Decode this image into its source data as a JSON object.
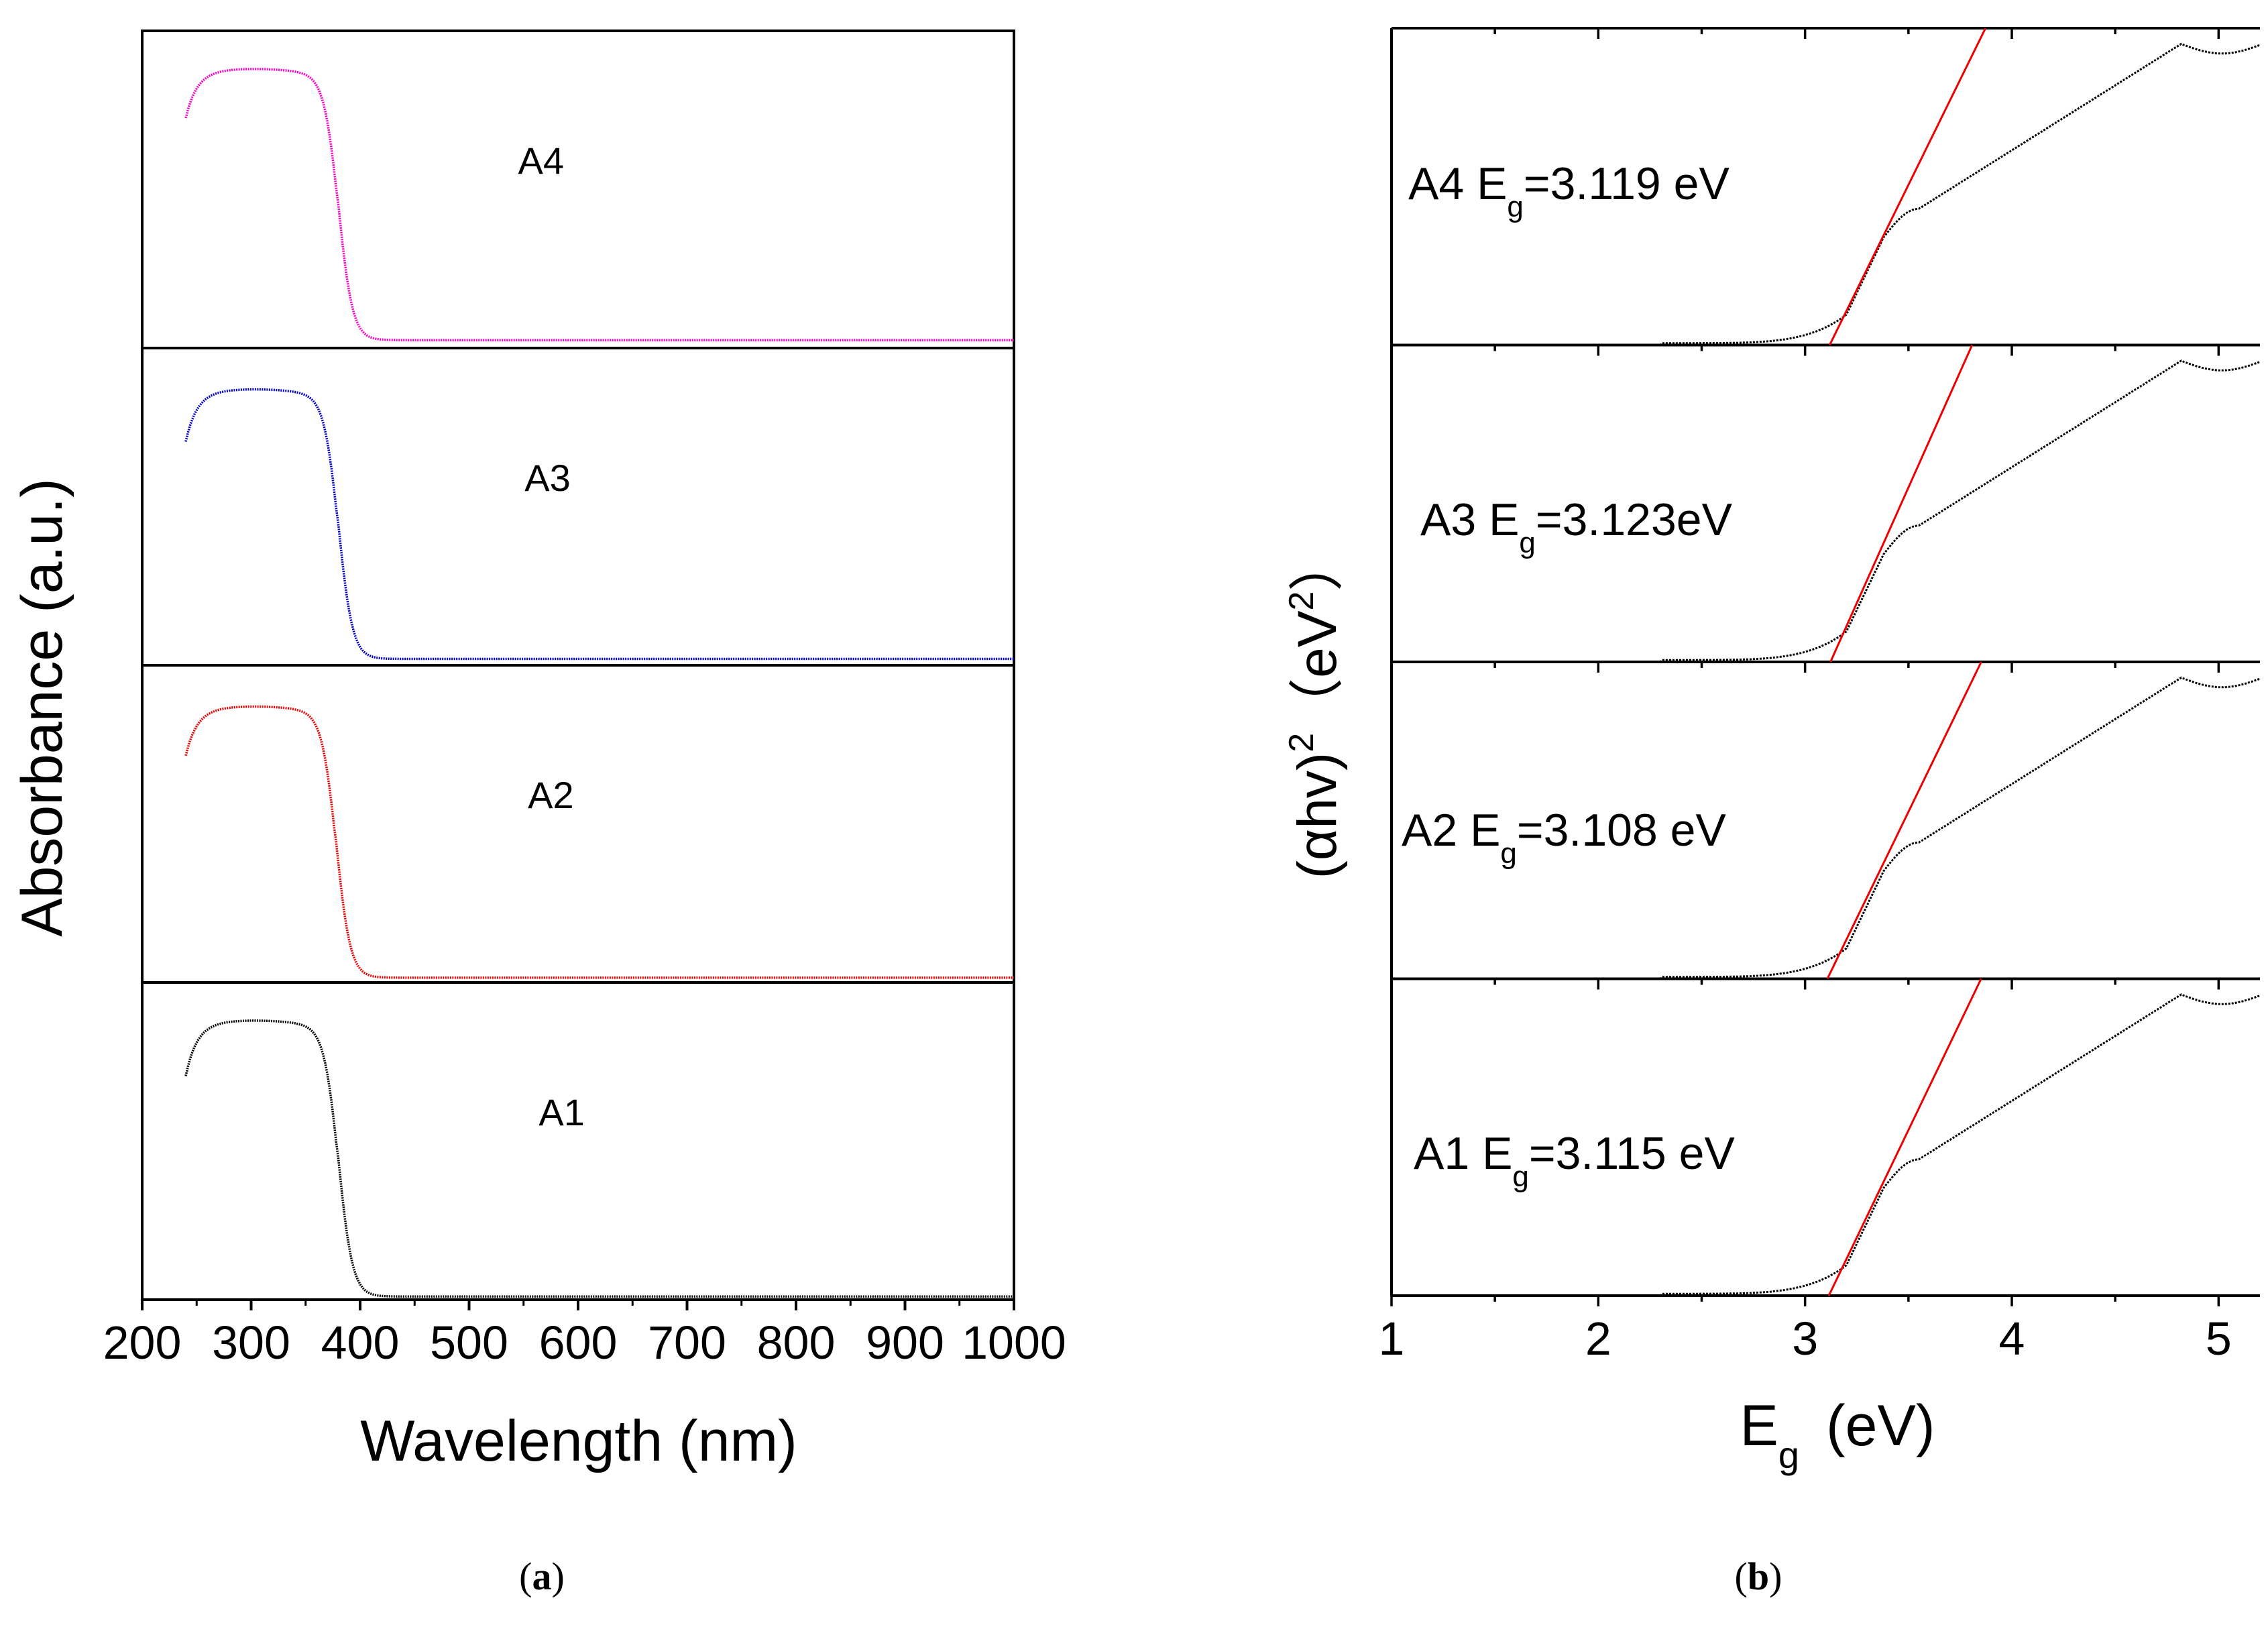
{
  "chart_data": [
    {
      "type": "line",
      "panel": "a",
      "caption_letter": "a",
      "xlabel": "Wavelength (nm)",
      "ylabel": "Absorbance (a.u.)",
      "xlim": [
        200,
        1000
      ],
      "ylim": [
        0,
        1
      ],
      "x_ticks": [
        200,
        300,
        400,
        500,
        600,
        700,
        800,
        900,
        1000
      ],
      "stacked_panels": 4,
      "series": [
        {
          "name": "A4",
          "color": "#ff00cc",
          "edge_nm": 380,
          "start_nm": 240,
          "plateau": 0.88,
          "start_level": 0.74,
          "tail": 0.025
        },
        {
          "name": "A3",
          "color": "#0000cc",
          "edge_nm": 380,
          "start_nm": 240,
          "plateau": 0.87,
          "start_level": 0.72,
          "tail": 0.02
        },
        {
          "name": "A2",
          "color": "#ee0000",
          "edge_nm": 378,
          "start_nm": 240,
          "plateau": 0.87,
          "start_level": 0.73,
          "tail": 0.015
        },
        {
          "name": "A1",
          "color": "#000000",
          "edge_nm": 380,
          "start_nm": 240,
          "plateau": 0.88,
          "start_level": 0.72,
          "tail": 0.01
        }
      ]
    },
    {
      "type": "line",
      "panel": "b",
      "caption_letter": "b",
      "xlabel_main": "E",
      "xlabel_sub": "g",
      "xlabel_unit": "(eV)",
      "ylabel_main": "(αhv)",
      "ylabel_sup": "2",
      "ylabel_unit_open": "（eV",
      "ylabel_unit_sup": "2",
      "ylabel_unit_close": "）",
      "xlim": [
        1,
        5.2
      ],
      "ylim": [
        0,
        1
      ],
      "x_ticks": [
        1,
        2,
        3,
        4,
        5
      ],
      "stacked_panels": 4,
      "series": [
        {
          "name": "A4",
          "label_prefix": "A4  E",
          "label_sub": "g",
          "label_value": "=3.119 eV",
          "eg": 3.119,
          "fit_top_x": 3.82,
          "color": "#000000",
          "fit_color": "#ee0000"
        },
        {
          "name": "A3",
          "label_prefix": "A3  E",
          "label_sub": "g",
          "label_value": "=3.123eV",
          "eg": 3.123,
          "fit_top_x": 3.76,
          "color": "#000000",
          "fit_color": "#ee0000"
        },
        {
          "name": "A2",
          "label_prefix": "A2  E",
          "label_sub": "g",
          "label_value": "=3.108 eV",
          "eg": 3.108,
          "fit_top_x": 3.8,
          "color": "#000000",
          "fit_color": "#ee0000"
        },
        {
          "name": "A1",
          "label_prefix": "A1  E",
          "label_sub": "g",
          "label_value": "=3.115 eV",
          "eg": 3.115,
          "fit_top_x": 3.8,
          "color": "#000000",
          "fit_color": "#ee0000"
        }
      ]
    }
  ]
}
